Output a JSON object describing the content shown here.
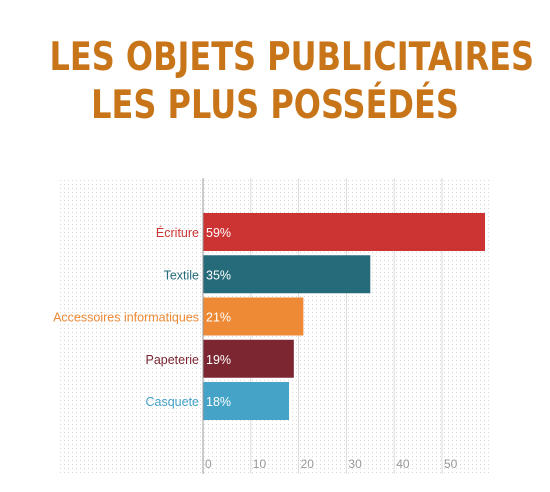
{
  "title": {
    "line1": "LES OBJETS PUBLICITAIRES",
    "line2": "LES PLUS POSSÉDÉS"
  },
  "chart_data": {
    "type": "bar",
    "orientation": "horizontal",
    "categories": [
      "Écriture",
      "Textile",
      "Accessoires informatiques",
      "Papeterie",
      "Casquete"
    ],
    "values": [
      59,
      35,
      21,
      19,
      18
    ],
    "value_labels": [
      "59%",
      "35%",
      "21%",
      "19%",
      "18%"
    ],
    "colors": [
      "#cc3433",
      "#266b79",
      "#ee8a35",
      "#7b2631",
      "#44a3c7"
    ],
    "category_label_colors": [
      "#cc3433",
      "#266b79",
      "#ee8a35",
      "#7b2631",
      "#44a3c7"
    ],
    "xticks": [
      0,
      10,
      20,
      30,
      40,
      50
    ],
    "xlim": [
      0,
      60
    ],
    "grid": true,
    "title": "LES OBJETS PUBLICITAIRES LES PLUS POSSÉDÉS"
  },
  "colors": {
    "title": "#c87519",
    "grid_dot": "#d4d4d4",
    "axis": "#9a9a9a",
    "tick_label": "#9a9a9a",
    "bar_value_text": "#ffffff"
  }
}
